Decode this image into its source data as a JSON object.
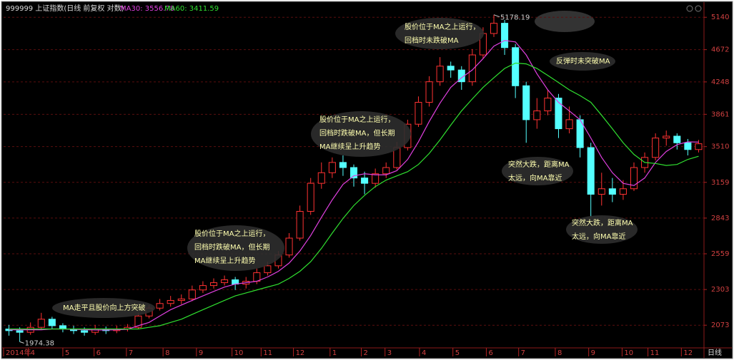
{
  "chart_data": {
    "type": "candlestick",
    "title": "999999 上证指数(日线 前复权 对数)",
    "open": [
      2050,
      2040,
      2030,
      2060,
      2110,
      2070,
      2050,
      2040,
      2030,
      2050,
      2040,
      2050,
      2060,
      2130,
      2180,
      2210,
      2230,
      2240,
      2300,
      2330,
      2350,
      2370,
      2340,
      2360,
      2420,
      2470,
      2550,
      2680,
      2900,
      3150,
      3250,
      3350,
      3300,
      3200,
      3150,
      3240,
      3300,
      3500,
      3750,
      4000,
      4250,
      4450,
      4400,
      4250,
      4600,
      4900,
      5050,
      4700,
      4200,
      3800,
      3900,
      4050,
      3700,
      3800,
      3500,
      3050,
      3100,
      3050,
      3100,
      3300,
      3400,
      3600,
      3620,
      3550,
      3480
    ],
    "high": [
      2075,
      2060,
      2090,
      2150,
      2125,
      2085,
      2070,
      2060,
      2075,
      2065,
      2070,
      2080,
      2150,
      2200,
      2240,
      2260,
      2270,
      2330,
      2360,
      2380,
      2400,
      2390,
      2390,
      2450,
      2500,
      2580,
      2720,
      2950,
      3200,
      3350,
      3400,
      3420,
      3330,
      3260,
      3290,
      3350,
      3560,
      3800,
      4070,
      4320,
      4570,
      4510,
      4450,
      4680,
      4990,
      5178.19,
      5100,
      4750,
      4250,
      4050,
      4150,
      4100,
      3950,
      3850,
      3550,
      3250,
      3200,
      3180,
      3350,
      3450,
      3650,
      3680,
      3650,
      3590,
      3580
    ],
    "low": [
      2010,
      1974.38,
      2015,
      2050,
      2050,
      2030,
      2020,
      2010,
      2015,
      2020,
      2025,
      2035,
      2050,
      2115,
      2165,
      2190,
      2205,
      2225,
      2280,
      2310,
      2330,
      2300,
      2310,
      2340,
      2400,
      2450,
      2530,
      2660,
      2870,
      3100,
      3200,
      3220,
      3120,
      3050,
      3110,
      3200,
      3280,
      3470,
      3720,
      3950,
      4200,
      4300,
      4150,
      4200,
      4550,
      4850,
      4600,
      4050,
      3550,
      3700,
      3850,
      3600,
      3650,
      3400,
      2850,
      2950,
      2980,
      3000,
      3080,
      3250,
      3370,
      3520,
      3480,
      3420,
      3450
    ],
    "close": [
      2040,
      2030,
      2060,
      2110,
      2070,
      2050,
      2040,
      2030,
      2050,
      2040,
      2050,
      2060,
      2130,
      2180,
      2210,
      2230,
      2240,
      2300,
      2330,
      2350,
      2370,
      2340,
      2360,
      2420,
      2470,
      2550,
      2680,
      2900,
      3150,
      3250,
      3350,
      3300,
      3200,
      3150,
      3240,
      3300,
      3500,
      3750,
      4000,
      4250,
      4450,
      4400,
      4250,
      4600,
      4900,
      5050,
      4700,
      4200,
      3800,
      3900,
      4050,
      3700,
      3800,
      3500,
      3050,
      3100,
      3050,
      3100,
      3300,
      3400,
      3600,
      3620,
      3550,
      3480,
      3540
    ],
    "up_color": "#ff3232",
    "down_color": "#54ffff",
    "series": [
      {
        "name": "MA30: 3556.78",
        "color": "#e040e0",
        "values": [
          2045,
          2045,
          2045,
          2045,
          2050,
          2050,
          2048,
          2046,
          2044,
          2044,
          2045,
          2048,
          2070,
          2090,
          2130,
          2170,
          2200,
          2230,
          2260,
          2290,
          2320,
          2340,
          2350,
          2360,
          2390,
          2430,
          2490,
          2580,
          2700,
          2850,
          3000,
          3140,
          3220,
          3240,
          3230,
          3230,
          3270,
          3380,
          3560,
          3780,
          3990,
          4180,
          4300,
          4400,
          4550,
          4720,
          4800,
          4780,
          4600,
          4350,
          4150,
          4000,
          3900,
          3800,
          3600,
          3400,
          3250,
          3150,
          3130,
          3200,
          3350,
          3460,
          3530,
          3560,
          3557
        ]
      },
      {
        "name": "MA60: 3411.59",
        "color": "#30e030",
        "values": [
          2050,
          2050,
          2050,
          2050,
          2050,
          2050,
          2050,
          2050,
          2050,
          2050,
          2050,
          2050,
          2050,
          2060,
          2070,
          2090,
          2110,
          2140,
          2170,
          2200,
          2230,
          2260,
          2280,
          2300,
          2320,
          2340,
          2380,
          2430,
          2500,
          2600,
          2720,
          2840,
          2950,
          3040,
          3120,
          3180,
          3220,
          3260,
          3330,
          3440,
          3580,
          3740,
          3900,
          4040,
          4180,
          4300,
          4420,
          4490,
          4480,
          4420,
          4330,
          4240,
          4150,
          4080,
          4000,
          3850,
          3700,
          3550,
          3430,
          3350,
          3340,
          3320,
          3330,
          3380,
          3412
        ]
      }
    ],
    "log_scale": true,
    "ylim": [
      1943,
      5296
    ],
    "yticks": [
      2073,
      2303,
      2559,
      2843,
      3159,
      3510,
      3861,
      4248,
      4672,
      5140
    ],
    "xlim": [
      0,
      65
    ],
    "xticks": [
      {
        "value": 0,
        "label": "2014年"
      },
      {
        "value": 2.3,
        "label": "4"
      },
      {
        "value": 5.5,
        "label": "5"
      },
      {
        "value": 8.4,
        "label": "6"
      },
      {
        "value": 11.4,
        "label": "7"
      },
      {
        "value": 14.8,
        "label": "8"
      },
      {
        "value": 17.9,
        "label": "9"
      },
      {
        "value": 21.2,
        "label": "10"
      },
      {
        "value": 23.9,
        "label": "11"
      },
      {
        "value": 26.9,
        "label": "12"
      },
      {
        "value": 30.3,
        "label": "1"
      },
      {
        "value": 33.2,
        "label": "2"
      },
      {
        "value": 35.4,
        "label": "3"
      },
      {
        "value": 38.6,
        "label": "4"
      },
      {
        "value": 41.7,
        "label": "5"
      },
      {
        "value": 44.8,
        "label": "6"
      },
      {
        "value": 47.8,
        "label": "7"
      },
      {
        "value": 51.2,
        "label": "8"
      },
      {
        "value": 54.3,
        "label": "9"
      },
      {
        "value": 57.4,
        "label": "10"
      },
      {
        "value": 59.8,
        "label": "11"
      },
      {
        "value": 62.9,
        "label": "12"
      }
    ],
    "period_label": "日线",
    "grid": true,
    "annotations": [
      {
        "lines": [
          "MA走平且股价向上方突破"
        ]
      },
      {
        "lines": [
          "股价位于MA之上运行，",
          "回档时跌破MA，但长期",
          "MA继续呈上升趋势"
        ]
      },
      {
        "lines": [
          "股价位于MA之上运行，",
          "回档时跌破MA，但长期",
          "MA继续呈上升趋势"
        ]
      },
      {
        "lines": [
          "股价位于MA之上运行，",
          "回档时未跌破MA"
        ]
      },
      {
        "lines": [
          "反弹时未突破MA"
        ]
      },
      {
        "lines": [
          "突然大跌，距离MA",
          "太远，向MA靠近"
        ]
      },
      {
        "lines": [
          "突然大跌，距离MA",
          "太远，向MA靠近"
        ]
      }
    ]
  }
}
